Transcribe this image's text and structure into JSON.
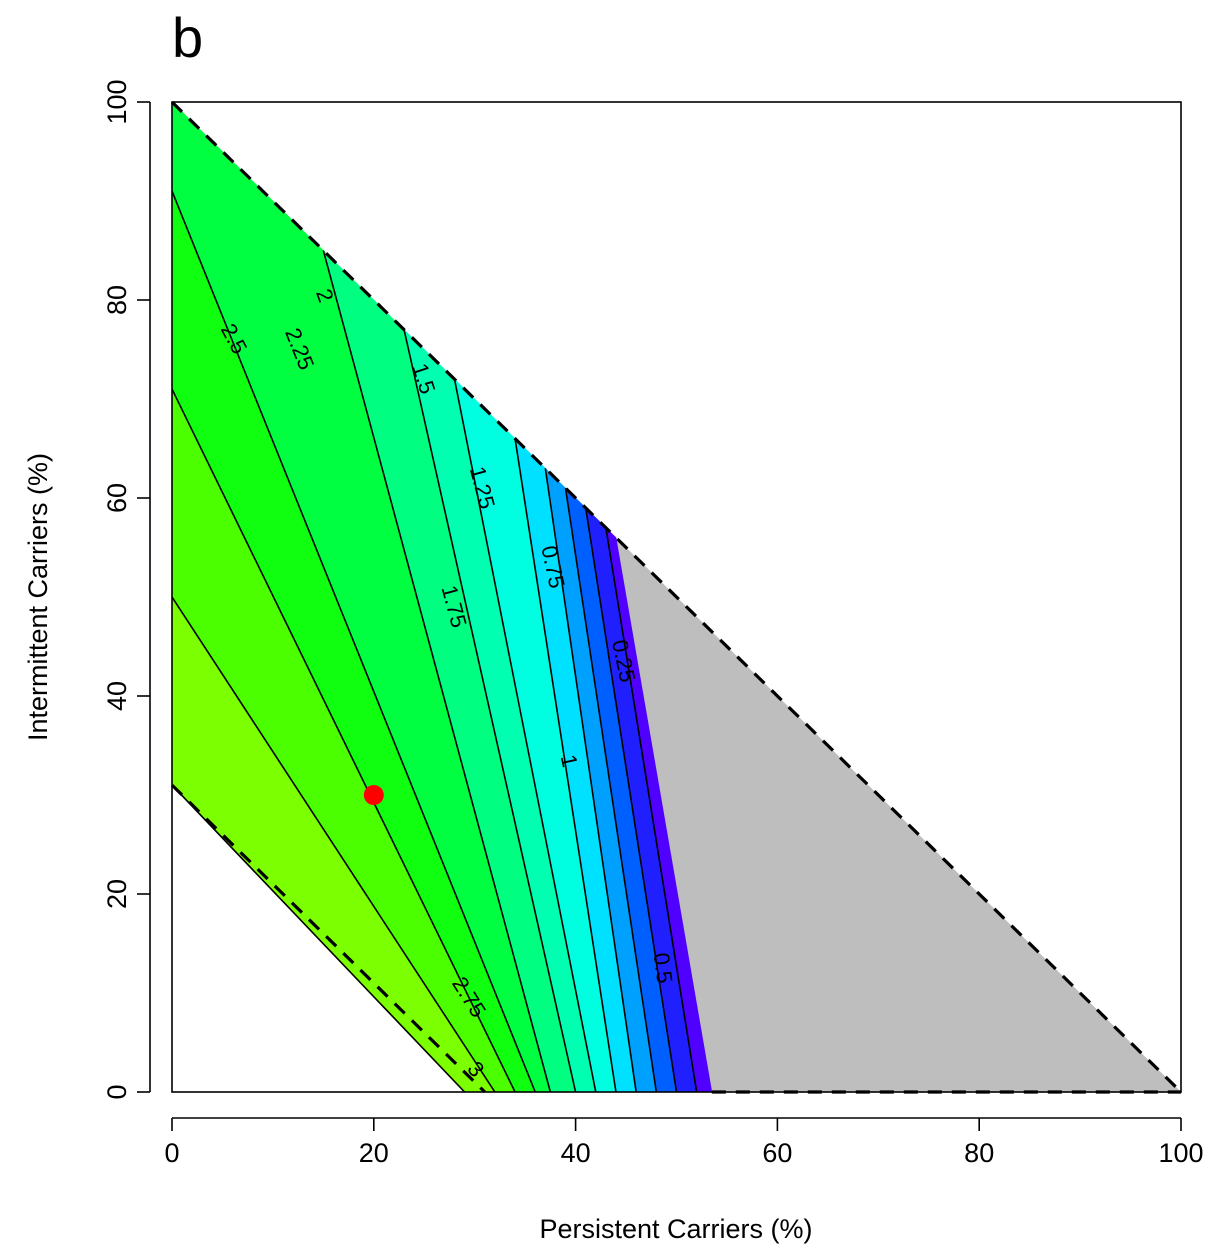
{
  "panel_label": "b",
  "chart_data": {
    "type": "contour",
    "xlabel": "Persistent Carriers (%)",
    "ylabel": "Intermittent Carriers (%)",
    "xlim": [
      0,
      100
    ],
    "ylim": [
      0,
      100
    ],
    "xticks": [
      "0",
      "20",
      "40",
      "60",
      "80",
      "100"
    ],
    "yticks": [
      "0",
      "20",
      "40",
      "60",
      "80",
      "100"
    ],
    "feasible_region": {
      "upper_boundary": [
        [
          0,
          100
        ],
        [
          100,
          0
        ]
      ],
      "lower_boundary": [
        [
          0,
          31
        ],
        [
          31,
          0
        ]
      ]
    },
    "zero_region_color": "#bebebe",
    "palette": [
      "#a6ff00",
      "#00ff00",
      "#00ff9a",
      "#00ffff",
      "#0090ff",
      "#0000ff",
      "#6a00ff",
      "#9a00ff"
    ],
    "contour_levels": [
      {
        "level": "3",
        "line": [
          [
            29,
            0
          ],
          [
            0,
            31
          ]
        ]
      },
      {
        "level": "2.75",
        "line": [
          [
            32,
            0
          ],
          [
            0,
            50
          ]
        ]
      },
      {
        "level": "2.5",
        "line": [
          [
            34,
            0
          ],
          [
            0,
            71
          ]
        ]
      },
      {
        "level": "2.25",
        "line": [
          [
            36,
            0
          ],
          [
            0,
            91
          ]
        ]
      },
      {
        "level": "2",
        "line": [
          [
            37.5,
            0
          ],
          [
            15,
            85
          ]
        ]
      },
      {
        "level": "1.75",
        "line": [
          [
            40,
            0
          ],
          [
            23,
            77
          ]
        ]
      },
      {
        "level": "1.5",
        "line": [
          [
            42,
            0
          ],
          [
            28,
            72
          ]
        ]
      },
      {
        "level": "1.25",
        "line": [
          [
            44,
            0
          ],
          [
            34,
            66
          ]
        ]
      },
      {
        "level": "1",
        "line": [
          [
            46,
            0
          ],
          [
            37,
            63
          ]
        ]
      },
      {
        "level": "0.75",
        "line": [
          [
            48,
            0
          ],
          [
            39,
            61
          ]
        ]
      },
      {
        "level": "0.5",
        "line": [
          [
            50,
            0
          ],
          [
            41,
            59
          ]
        ]
      },
      {
        "level": "0.25",
        "line": [
          [
            52,
            0
          ],
          [
            43,
            57
          ]
        ]
      }
    ],
    "contour_labels": [
      {
        "text": "2.5",
        "x": 6,
        "y": 76,
        "angle": 62
      },
      {
        "text": "2.25",
        "x": 12.5,
        "y": 75,
        "angle": 68
      },
      {
        "text": "2",
        "x": 15,
        "y": 80.4,
        "angle": 70
      },
      {
        "text": "1.5",
        "x": 24.8,
        "y": 72,
        "angle": 72
      },
      {
        "text": "1.25",
        "x": 30.6,
        "y": 61,
        "angle": 75
      },
      {
        "text": "1.75",
        "x": 27.8,
        "y": 49,
        "angle": 75
      },
      {
        "text": "0.75",
        "x": 37.6,
        "y": 53,
        "angle": 78
      },
      {
        "text": "0.25",
        "x": 44.6,
        "y": 43.5,
        "angle": 78
      },
      {
        "text": "1",
        "x": 39.2,
        "y": 33.4,
        "angle": 78
      },
      {
        "text": "2.75",
        "x": 29.3,
        "y": 9.5,
        "angle": 58
      },
      {
        "text": "3",
        "x": 30,
        "y": 2.2,
        "angle": 50
      },
      {
        "text": "0.5",
        "x": 48.5,
        "y": 12.5,
        "angle": 82
      }
    ],
    "highlight_point": {
      "x": 20,
      "y": 30,
      "color": "#ff0000"
    }
  }
}
